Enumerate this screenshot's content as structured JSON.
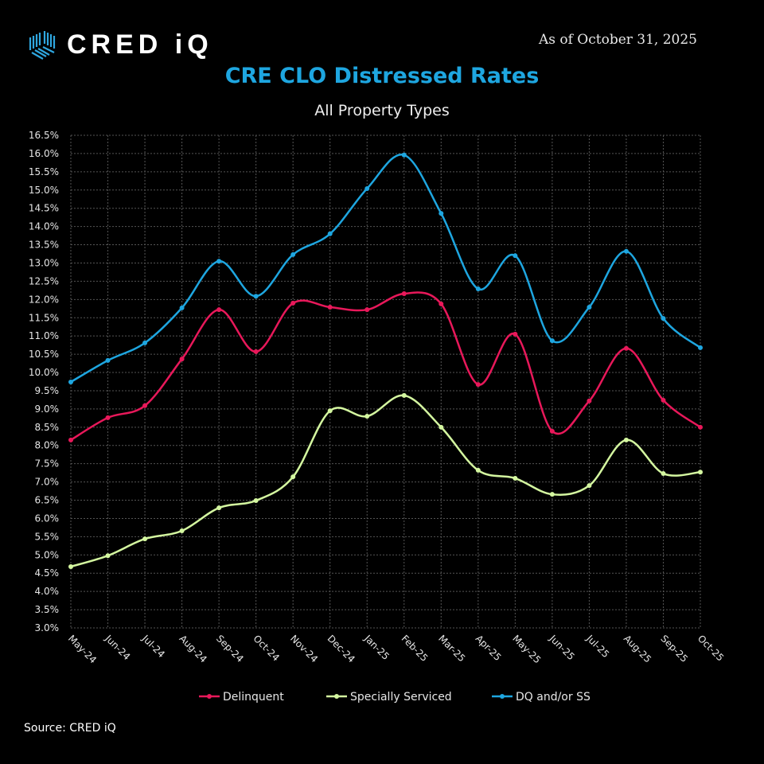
{
  "header": {
    "logo_text": "CRED iQ",
    "as_of": "As of October 31, 2025"
  },
  "footer": {
    "source": "Source:  CRED iQ"
  },
  "colors": {
    "delinquent": "#e8185a",
    "specially_serviced": "#d4f7a0",
    "dq_ss": "#1ea6e0",
    "title": "#1ea6e0"
  },
  "chart_data": {
    "type": "line",
    "title": "CRE CLO Distressed Rates",
    "subtitle": "All Property Types",
    "xlabel": "",
    "ylabel": "",
    "ylim": [
      3.0,
      16.5
    ],
    "y_ticks": [
      "3.0%",
      "3.5%",
      "4.0%",
      "4.5%",
      "5.0%",
      "5.5%",
      "6.0%",
      "6.5%",
      "7.0%",
      "7.5%",
      "8.0%",
      "8.5%",
      "9.0%",
      "9.5%",
      "10.0%",
      "10.5%",
      "11.0%",
      "11.5%",
      "12.0%",
      "12.5%",
      "13.0%",
      "13.5%",
      "14.0%",
      "14.5%",
      "15.0%",
      "15.5%",
      "16.0%",
      "16.5%"
    ],
    "grid": true,
    "legend_position": "bottom",
    "categories": [
      "May-24",
      "Jun-24",
      "Jul-24",
      "Aug-24",
      "Sep-24",
      "Oct-24",
      "Nov-24",
      "Dec-24",
      "Jan-25",
      "Feb-25",
      "Mar-25",
      "Apr-25",
      "May-25",
      "Jun-25",
      "Jul-25",
      "Aug-25",
      "Sep-25",
      "Oct-25"
    ],
    "series": [
      {
        "name": "Delinquent",
        "color": "#e8185a",
        "values": [
          8.15,
          8.76,
          9.09,
          10.37,
          11.72,
          10.57,
          11.9,
          11.79,
          11.72,
          12.16,
          11.88,
          9.67,
          11.05,
          8.39,
          9.22,
          10.66,
          9.24,
          8.5
        ]
      },
      {
        "name": "Specially Serviced",
        "color": "#d4f7a0",
        "values": [
          4.68,
          4.98,
          5.44,
          5.66,
          6.29,
          6.49,
          7.14,
          8.95,
          8.8,
          9.37,
          8.5,
          7.32,
          7.1,
          6.66,
          6.9,
          8.15,
          7.23,
          7.27
        ]
      },
      {
        "name": "DQ and/or SS",
        "color": "#1ea6e0",
        "values": [
          9.74,
          10.33,
          10.81,
          11.77,
          13.05,
          12.09,
          13.23,
          13.8,
          15.04,
          15.96,
          14.36,
          12.29,
          13.2,
          10.87,
          11.79,
          13.32,
          11.48,
          10.68
        ]
      }
    ]
  }
}
